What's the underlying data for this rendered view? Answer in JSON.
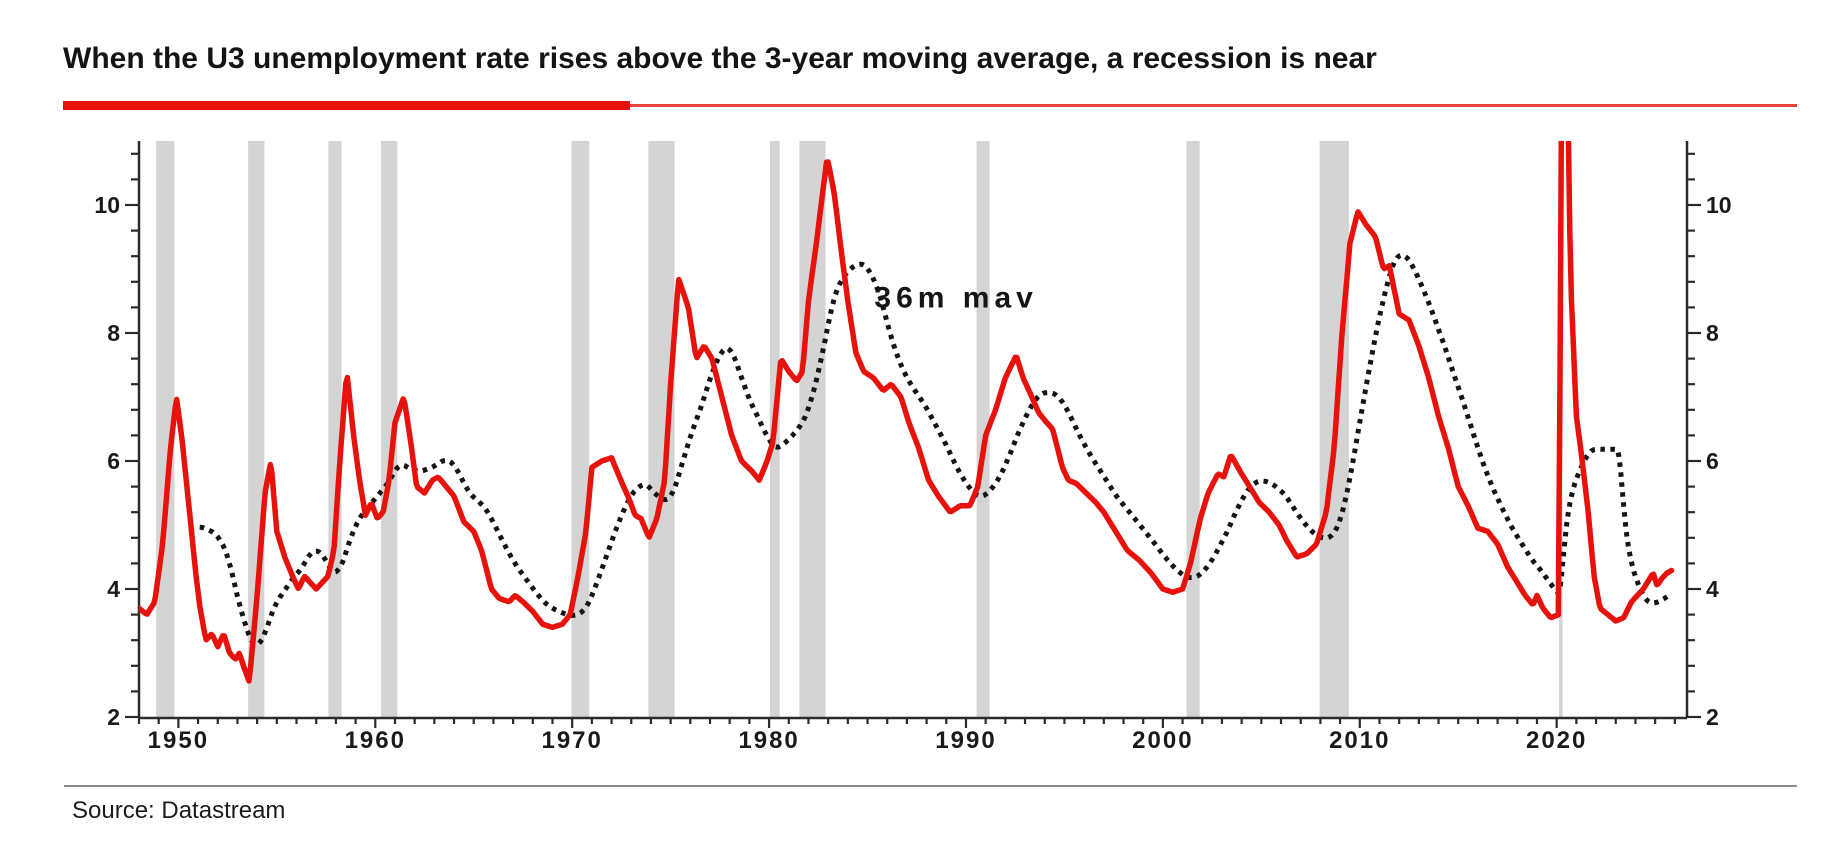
{
  "header": {
    "title": "When the U3 unemployment rate rises above the 3-year moving average, a recession is near"
  },
  "footer": {
    "source": "Source: Datastream"
  },
  "annotation": {
    "text": "36m mav",
    "year": 1985.35,
    "value": 8.6
  },
  "colors": {
    "accent_red": "#e8120d",
    "underline_thin_red": "#e4423a",
    "mav_black": "#151515",
    "recession_band": "#d4d4d4",
    "axis": "#2b2b2b",
    "label": "#1a1a1a"
  },
  "chart_data": {
    "type": "line",
    "title": "When the U3 unemployment rate rises above the 3-year moving average, a recession is near",
    "y_axis": {
      "min": 2,
      "max": 11,
      "major_ticks": [
        2,
        4,
        6,
        8,
        10
      ],
      "minor_step": 0.4,
      "labels_both_sides": true
    },
    "x_axis": {
      "start": 1948,
      "end": 2026.5,
      "major_ticks": [
        1950,
        1960,
        1970,
        1980,
        1990,
        2000,
        2010,
        2020
      ],
      "minor_step": 1
    },
    "grid": "off",
    "legend": "none",
    "series": [
      {
        "name": "U3 unemployment rate (%)",
        "style": "solid",
        "color": "#e8120d",
        "points": [
          [
            1948.0,
            3.7
          ],
          [
            1948.4,
            3.6
          ],
          [
            1948.8,
            3.8
          ],
          [
            1949.2,
            4.7
          ],
          [
            1949.6,
            6.2
          ],
          [
            1949.9,
            7.0
          ],
          [
            1950.2,
            6.3
          ],
          [
            1950.5,
            5.4
          ],
          [
            1950.9,
            4.2
          ],
          [
            1951.1,
            3.7
          ],
          [
            1951.4,
            3.2
          ],
          [
            1951.7,
            3.3
          ],
          [
            1952.0,
            3.1
          ],
          [
            1952.3,
            3.3
          ],
          [
            1952.6,
            3.0
          ],
          [
            1952.9,
            2.9
          ],
          [
            1953.1,
            3.0
          ],
          [
            1953.3,
            2.8
          ],
          [
            1953.6,
            2.55
          ],
          [
            1954.0,
            3.9
          ],
          [
            1954.4,
            5.5
          ],
          [
            1954.7,
            6.0
          ],
          [
            1955.0,
            4.9
          ],
          [
            1955.4,
            4.5
          ],
          [
            1955.8,
            4.2
          ],
          [
            1956.1,
            4.0
          ],
          [
            1956.4,
            4.2
          ],
          [
            1956.7,
            4.1
          ],
          [
            1957.0,
            4.0
          ],
          [
            1957.3,
            4.1
          ],
          [
            1957.6,
            4.2
          ],
          [
            1957.9,
            4.6
          ],
          [
            1958.2,
            6.0
          ],
          [
            1958.55,
            7.4
          ],
          [
            1958.9,
            6.4
          ],
          [
            1959.2,
            5.7
          ],
          [
            1959.5,
            5.15
          ],
          [
            1959.8,
            5.35
          ],
          [
            1960.1,
            5.1
          ],
          [
            1960.4,
            5.2
          ],
          [
            1960.7,
            5.7
          ],
          [
            1961.0,
            6.6
          ],
          [
            1961.45,
            7.0
          ],
          [
            1961.8,
            6.3
          ],
          [
            1962.1,
            5.6
          ],
          [
            1962.5,
            5.5
          ],
          [
            1962.9,
            5.7
          ],
          [
            1963.2,
            5.75
          ],
          [
            1963.6,
            5.6
          ],
          [
            1964.0,
            5.45
          ],
          [
            1964.5,
            5.05
          ],
          [
            1965.0,
            4.9
          ],
          [
            1965.4,
            4.6
          ],
          [
            1965.9,
            4.0
          ],
          [
            1966.3,
            3.85
          ],
          [
            1966.8,
            3.8
          ],
          [
            1967.1,
            3.9
          ],
          [
            1967.5,
            3.8
          ],
          [
            1968.0,
            3.65
          ],
          [
            1968.5,
            3.45
          ],
          [
            1969.0,
            3.4
          ],
          [
            1969.5,
            3.45
          ],
          [
            1969.9,
            3.6
          ],
          [
            1970.3,
            4.2
          ],
          [
            1970.7,
            4.9
          ],
          [
            1971.0,
            5.9
          ],
          [
            1971.5,
            6.0
          ],
          [
            1972.0,
            6.05
          ],
          [
            1972.4,
            5.75
          ],
          [
            1972.9,
            5.4
          ],
          [
            1973.2,
            5.15
          ],
          [
            1973.5,
            5.1
          ],
          [
            1973.9,
            4.8
          ],
          [
            1974.3,
            5.1
          ],
          [
            1974.7,
            5.7
          ],
          [
            1975.0,
            7.2
          ],
          [
            1975.4,
            8.85
          ],
          [
            1975.9,
            8.4
          ],
          [
            1976.3,
            7.6
          ],
          [
            1976.7,
            7.8
          ],
          [
            1977.1,
            7.6
          ],
          [
            1977.6,
            7.0
          ],
          [
            1978.1,
            6.4
          ],
          [
            1978.6,
            6.0
          ],
          [
            1979.1,
            5.85
          ],
          [
            1979.5,
            5.7
          ],
          [
            1979.9,
            6.0
          ],
          [
            1980.2,
            6.3
          ],
          [
            1980.6,
            7.6
          ],
          [
            1981.0,
            7.4
          ],
          [
            1981.4,
            7.25
          ],
          [
            1981.7,
            7.4
          ],
          [
            1982.0,
            8.5
          ],
          [
            1982.4,
            9.4
          ],
          [
            1982.95,
            10.75
          ],
          [
            1983.3,
            10.2
          ],
          [
            1983.7,
            9.2
          ],
          [
            1984.0,
            8.5
          ],
          [
            1984.4,
            7.7
          ],
          [
            1984.8,
            7.4
          ],
          [
            1985.3,
            7.3
          ],
          [
            1985.8,
            7.1
          ],
          [
            1986.2,
            7.2
          ],
          [
            1986.7,
            7.0
          ],
          [
            1987.1,
            6.6
          ],
          [
            1987.6,
            6.2
          ],
          [
            1988.1,
            5.7
          ],
          [
            1988.6,
            5.45
          ],
          [
            1989.2,
            5.2
          ],
          [
            1989.7,
            5.3
          ],
          [
            1990.2,
            5.3
          ],
          [
            1990.6,
            5.6
          ],
          [
            1991.0,
            6.4
          ],
          [
            1991.5,
            6.8
          ],
          [
            1992.0,
            7.3
          ],
          [
            1992.55,
            7.65
          ],
          [
            1992.9,
            7.3
          ],
          [
            1993.2,
            7.1
          ],
          [
            1993.7,
            6.75
          ],
          [
            1994.1,
            6.6
          ],
          [
            1994.4,
            6.5
          ],
          [
            1994.9,
            5.9
          ],
          [
            1995.2,
            5.7
          ],
          [
            1995.6,
            5.65
          ],
          [
            1996.1,
            5.5
          ],
          [
            1996.6,
            5.35
          ],
          [
            1997.0,
            5.2
          ],
          [
            1997.6,
            4.9
          ],
          [
            1998.2,
            4.6
          ],
          [
            1998.8,
            4.45
          ],
          [
            1999.4,
            4.25
          ],
          [
            2000.0,
            4.0
          ],
          [
            2000.5,
            3.95
          ],
          [
            2001.0,
            4.0
          ],
          [
            2001.4,
            4.4
          ],
          [
            2001.9,
            5.1
          ],
          [
            2002.3,
            5.5
          ],
          [
            2002.8,
            5.8
          ],
          [
            2003.1,
            5.75
          ],
          [
            2003.45,
            6.1
          ],
          [
            2003.9,
            5.85
          ],
          [
            2004.4,
            5.6
          ],
          [
            2004.9,
            5.35
          ],
          [
            2005.4,
            5.2
          ],
          [
            2005.9,
            5.0
          ],
          [
            2006.3,
            4.75
          ],
          [
            2006.8,
            4.5
          ],
          [
            2007.3,
            4.55
          ],
          [
            2007.8,
            4.7
          ],
          [
            2008.3,
            5.2
          ],
          [
            2008.7,
            6.2
          ],
          [
            2009.1,
            8.0
          ],
          [
            2009.5,
            9.4
          ],
          [
            2009.9,
            9.9
          ],
          [
            2010.3,
            9.7
          ],
          [
            2010.8,
            9.5
          ],
          [
            2011.2,
            9.0
          ],
          [
            2011.5,
            9.05
          ],
          [
            2012.0,
            8.3
          ],
          [
            2012.5,
            8.2
          ],
          [
            2013.0,
            7.8
          ],
          [
            2013.5,
            7.3
          ],
          [
            2014.0,
            6.7
          ],
          [
            2014.5,
            6.2
          ],
          [
            2015.0,
            5.6
          ],
          [
            2015.5,
            5.3
          ],
          [
            2016.0,
            4.95
          ],
          [
            2016.5,
            4.9
          ],
          [
            2017.0,
            4.7
          ],
          [
            2017.5,
            4.35
          ],
          [
            2018.0,
            4.1
          ],
          [
            2018.4,
            3.9
          ],
          [
            2018.8,
            3.75
          ],
          [
            2019.0,
            3.9
          ],
          [
            2019.3,
            3.7
          ],
          [
            2019.7,
            3.55
          ],
          [
            2020.1,
            3.6
          ],
          [
            2020.3,
            14.7
          ],
          [
            2020.5,
            13.0
          ],
          [
            2020.7,
            8.9
          ],
          [
            2021.0,
            6.7
          ],
          [
            2021.3,
            6.0
          ],
          [
            2021.6,
            5.2
          ],
          [
            2021.9,
            4.2
          ],
          [
            2022.2,
            3.7
          ],
          [
            2022.6,
            3.6
          ],
          [
            2023.0,
            3.5
          ],
          [
            2023.4,
            3.55
          ],
          [
            2023.8,
            3.8
          ],
          [
            2024.1,
            3.9
          ],
          [
            2024.4,
            4.0
          ],
          [
            2024.7,
            4.15
          ],
          [
            2024.9,
            4.25
          ],
          [
            2025.1,
            4.05
          ],
          [
            2025.3,
            4.15
          ],
          [
            2025.6,
            4.25
          ],
          [
            2025.9,
            4.3
          ]
        ]
      },
      {
        "name": "36m mav",
        "style": "dotted",
        "color": "#151515",
        "derived": "trailing 36-month moving average of the U3 series, drawn from 1951 onward"
      }
    ],
    "recession_bands": [
      [
        1948.87,
        1949.8
      ],
      [
        1953.54,
        1954.37
      ],
      [
        1957.62,
        1958.29
      ],
      [
        1960.29,
        1961.12
      ],
      [
        1969.96,
        1970.87
      ],
      [
        1973.87,
        1975.2
      ],
      [
        1980.04,
        1980.54
      ],
      [
        1981.54,
        1982.87
      ],
      [
        1990.54,
        1991.2
      ],
      [
        2001.2,
        2001.87
      ],
      [
        2007.96,
        2009.45
      ],
      [
        2020.12,
        2020.3
      ]
    ]
  }
}
